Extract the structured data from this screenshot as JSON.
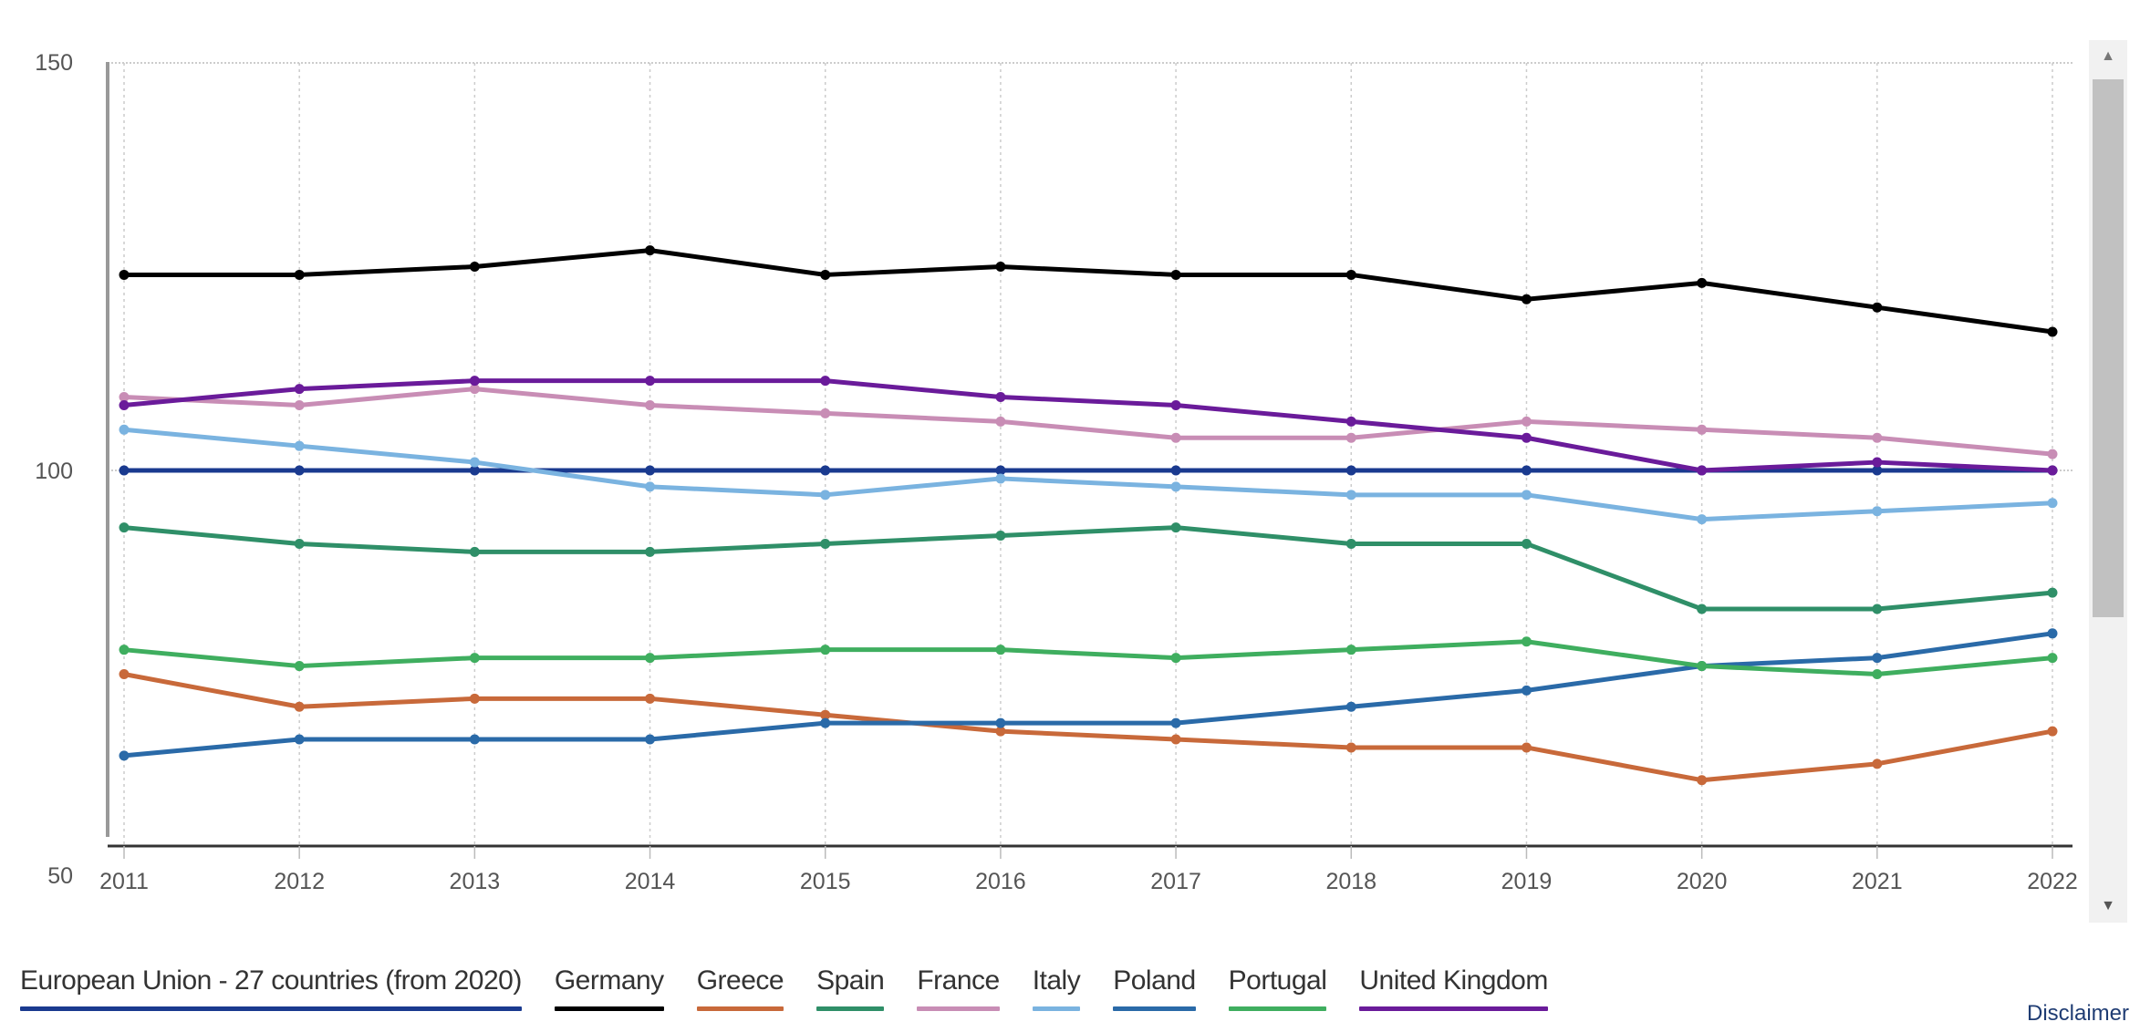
{
  "chart_data": {
    "type": "line",
    "title": "",
    "xlabel": "",
    "ylabel": "",
    "x": [
      "2011",
      "2012",
      "2013",
      "2014",
      "2015",
      "2016",
      "2017",
      "2018",
      "2019",
      "2020",
      "2021",
      "2022"
    ],
    "ylim": [
      50,
      150
    ],
    "yticks": [
      "150",
      "100",
      "50"
    ],
    "ytick_values": [
      150,
      100,
      50
    ],
    "grid": true,
    "legend_position": "bottom",
    "series": [
      {
        "name": "European Union - 27 countries (from 2020)",
        "color": "#1a3a8f",
        "values": [
          100,
          100,
          100,
          100,
          100,
          100,
          100,
          100,
          100,
          100,
          100,
          100
        ]
      },
      {
        "name": "Germany",
        "color": "#000000",
        "values": [
          124,
          124,
          125,
          127,
          124,
          125,
          124,
          124,
          121,
          123,
          120,
          117
        ]
      },
      {
        "name": "Greece",
        "color": "#c8693a",
        "values": [
          75,
          71,
          72,
          72,
          70,
          68,
          67,
          66,
          66,
          62,
          64,
          68
        ]
      },
      {
        "name": "Spain",
        "color": "#2f8f68",
        "values": [
          93,
          91,
          90,
          90,
          91,
          92,
          93,
          91,
          91,
          83,
          83,
          85
        ]
      },
      {
        "name": "France",
        "color": "#c88db5",
        "values": [
          109,
          108,
          110,
          108,
          107,
          106,
          104,
          104,
          106,
          105,
          104,
          102
        ]
      },
      {
        "name": "Italy",
        "color": "#7ab3e0",
        "values": [
          105,
          103,
          101,
          98,
          97,
          99,
          98,
          97,
          97,
          94,
          95,
          96
        ]
      },
      {
        "name": "Poland",
        "color": "#2a6aa8",
        "values": [
          65,
          67,
          67,
          67,
          69,
          69,
          69,
          71,
          73,
          76,
          77,
          80
        ]
      },
      {
        "name": "Portugal",
        "color": "#3fae5f",
        "values": [
          78,
          76,
          77,
          77,
          78,
          78,
          77,
          78,
          79,
          76,
          75,
          77
        ]
      },
      {
        "name": "United Kingdom",
        "color": "#6a1b9a",
        "values": [
          108,
          110,
          111,
          111,
          111,
          109,
          108,
          106,
          104,
          100,
          101,
          100
        ]
      }
    ]
  },
  "footer": {
    "disclaimer_label": "Disclaimer"
  },
  "scrollbar": {
    "up_arrow": "▲",
    "down_arrow": "▼"
  }
}
